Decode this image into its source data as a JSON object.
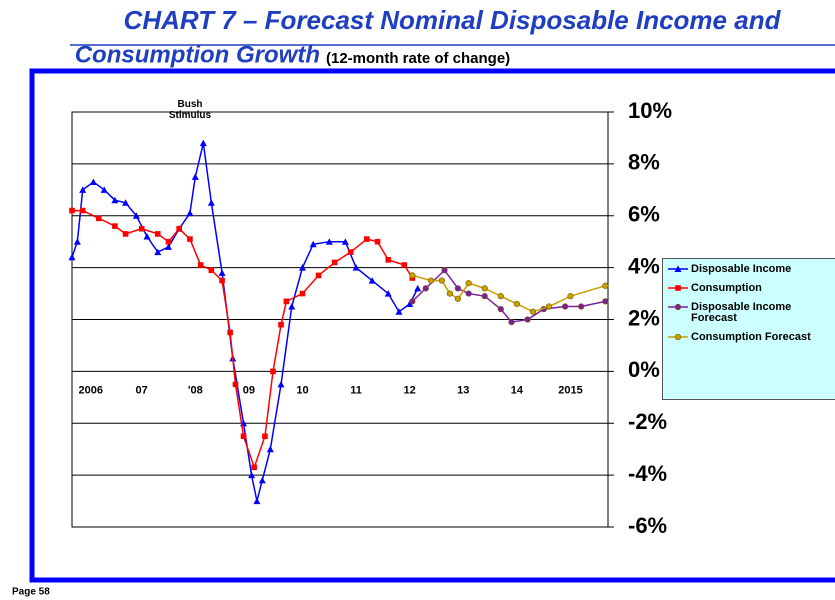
{
  "title": "CHART 7 – Forecast Nominal Disposable Income and",
  "subtitle_main": "Consumption Growth",
  "subtitle_note": "(12-month rate of change)",
  "footer": "Page 58",
  "chart_data": {
    "type": "line",
    "annotation": "Bush Stimulus",
    "xlim": [
      2006,
      2016
    ],
    "xticks": [
      {
        "value": 2006.35,
        "label": "2006"
      },
      {
        "value": 2007.3,
        "label": "07"
      },
      {
        "value": 2008.3,
        "label": "'08"
      },
      {
        "value": 2009.3,
        "label": "09"
      },
      {
        "value": 2010.3,
        "label": "10"
      },
      {
        "value": 2011.3,
        "label": "11"
      },
      {
        "value": 2012.3,
        "label": "12"
      },
      {
        "value": 2013.3,
        "label": "13"
      },
      {
        "value": 2014.3,
        "label": "14"
      },
      {
        "value": 2015.3,
        "label": "2015"
      }
    ],
    "ylim": [
      -6,
      10
    ],
    "yticks": [
      {
        "value": 10,
        "label": "10%"
      },
      {
        "value": 8,
        "label": "8%"
      },
      {
        "value": 6,
        "label": "6%"
      },
      {
        "value": 4,
        "label": "4%"
      },
      {
        "value": 2,
        "label": "2%"
      },
      {
        "value": 0,
        "label": "0%"
      },
      {
        "value": -2,
        "label": "-2%"
      },
      {
        "value": -4,
        "label": "-4%"
      },
      {
        "value": -6,
        "label": "-6%"
      }
    ],
    "grid": true,
    "legend": "right",
    "series": [
      {
        "name": "Disposable Income",
        "color": "#0000ff",
        "marker": "triangle",
        "x": [
          2006.0,
          2006.1,
          2006.2,
          2006.4,
          2006.6,
          2006.8,
          2007.0,
          2007.2,
          2007.4,
          2007.6,
          2007.8,
          2008.0,
          2008.2,
          2008.3,
          2008.45,
          2008.6,
          2008.8,
          2009.0,
          2009.2,
          2009.35,
          2009.45,
          2009.55,
          2009.7,
          2009.9,
          2010.1,
          2010.3,
          2010.5,
          2010.8,
          2011.1,
          2011.3,
          2011.6,
          2011.9,
          2012.1,
          2012.3,
          2012.45
        ],
        "values": [
          4.4,
          5.0,
          7.0,
          7.3,
          7.0,
          6.6,
          6.5,
          6.0,
          5.2,
          4.6,
          4.8,
          5.5,
          6.1,
          7.5,
          8.8,
          6.5,
          3.8,
          0.5,
          -2.0,
          -4.0,
          -5.0,
          -4.2,
          -3.0,
          -0.5,
          2.5,
          4.0,
          4.9,
          5.0,
          5.0,
          4.0,
          3.5,
          3.0,
          2.3,
          2.6,
          3.2
        ]
      },
      {
        "name": "Consumption",
        "color": "#ff0000",
        "marker": "square",
        "x": [
          2006.0,
          2006.2,
          2006.5,
          2006.8,
          2007.0,
          2007.3,
          2007.6,
          2007.8,
          2008.0,
          2008.2,
          2008.4,
          2008.6,
          2008.8,
          2008.95,
          2009.05,
          2009.2,
          2009.4,
          2009.6,
          2009.75,
          2009.9,
          2010.0,
          2010.3,
          2010.6,
          2010.9,
          2011.2,
          2011.5,
          2011.7,
          2011.9,
          2012.2,
          2012.35
        ],
        "values": [
          6.2,
          6.2,
          5.9,
          5.6,
          5.3,
          5.5,
          5.3,
          5.0,
          5.5,
          5.1,
          4.1,
          3.9,
          3.5,
          1.5,
          -0.5,
          -2.5,
          -3.7,
          -2.5,
          0.0,
          1.8,
          2.7,
          3.0,
          3.7,
          4.2,
          4.6,
          5.1,
          5.0,
          4.3,
          4.1,
          3.6
        ]
      },
      {
        "name": "Disposable Income Forecast",
        "color": "#7f1f9f",
        "marker": "circle",
        "x": [
          2012.35,
          2012.6,
          2012.95,
          2013.2,
          2013.4,
          2013.7,
          2014.0,
          2014.2,
          2014.5,
          2014.8,
          2015.2,
          2015.5,
          2015.95
        ],
        "values": [
          2.7,
          3.2,
          3.9,
          3.2,
          3.0,
          2.9,
          2.4,
          1.9,
          2.0,
          2.4,
          2.5,
          2.5,
          2.7
        ]
      },
      {
        "name": "Consumption Forecast",
        "color": "#c8a000",
        "marker": "circle",
        "x": [
          2012.35,
          2012.7,
          2012.9,
          2013.05,
          2013.2,
          2013.4,
          2013.7,
          2014.0,
          2014.3,
          2014.6,
          2014.9,
          2015.3,
          2015.95
        ],
        "values": [
          3.7,
          3.5,
          3.5,
          3.0,
          2.8,
          3.4,
          3.2,
          2.9,
          2.6,
          2.3,
          2.5,
          2.9,
          3.3
        ]
      }
    ]
  }
}
